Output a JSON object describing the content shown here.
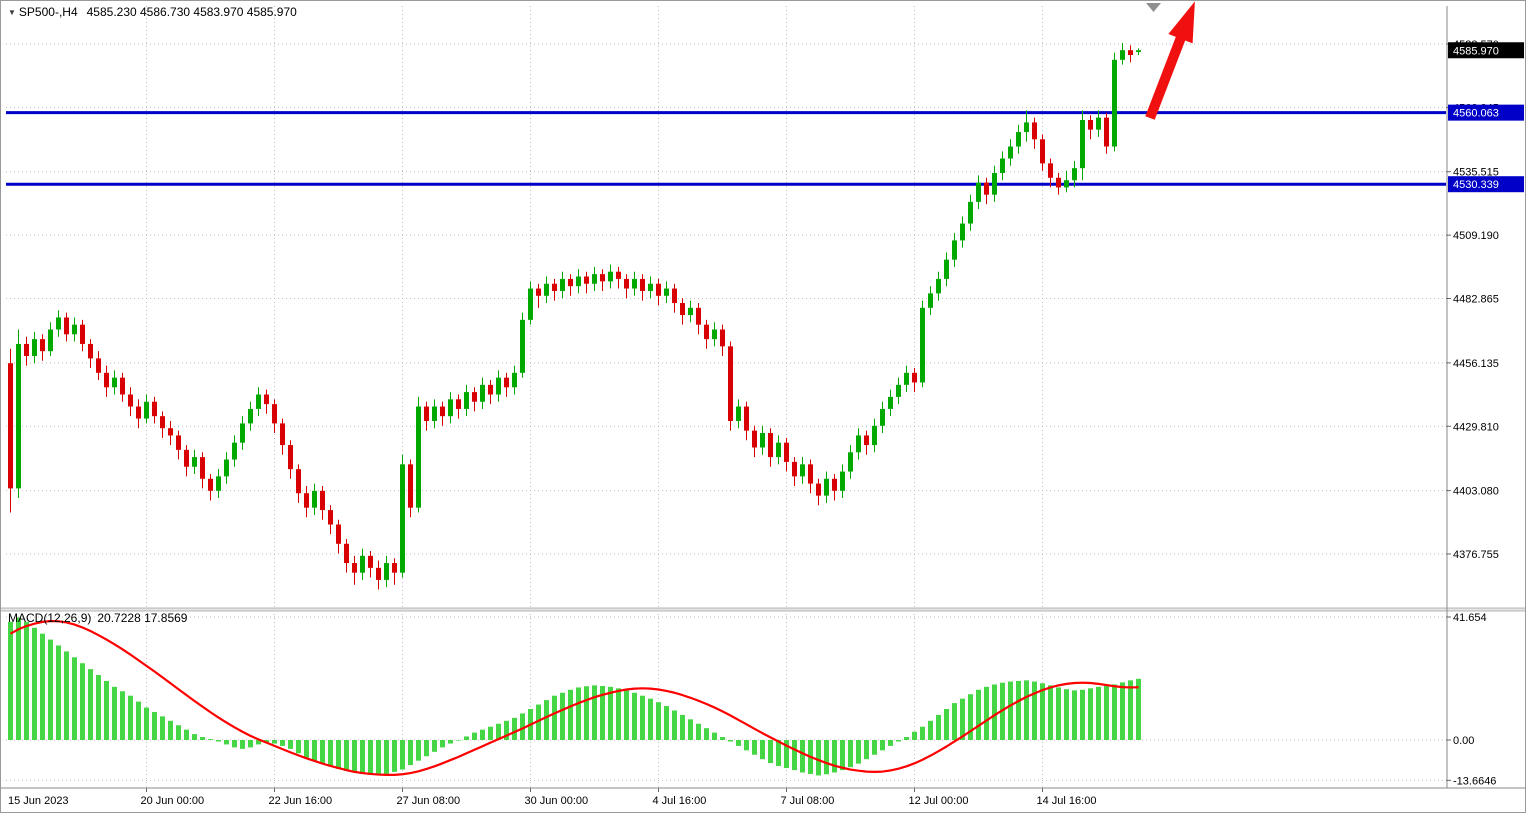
{
  "window": {
    "title_symbol": "SP500-,H4",
    "title_ohlc": "4585.230 4586.730 4583.970 4585.970"
  },
  "colors": {
    "background": "#FFFFFF",
    "grid": "#BDBDBD",
    "candle_up": "#00A800",
    "candle_down": "#D80000",
    "macd_hist": "#44D644",
    "macd_signal": "#FF0000",
    "hline": "#0000C8",
    "current_tag_bg": "#000000",
    "axis_text": "#000000",
    "arrow": "#F01010",
    "marker": "#8F8F8F",
    "border": "#9A9A9A"
  },
  "chart_data": {
    "type": "candlestick",
    "symbol": "SP500-",
    "timeframe": "H4",
    "current_bar": {
      "open": 4585.23,
      "high": 4586.73,
      "low": 4583.97,
      "close": 4585.97
    },
    "current_price": {
      "label": "4585.970",
      "price": 4585.97
    },
    "hlines": [
      {
        "label": "4560.063",
        "price": 4560.063
      },
      {
        "label": "4530.339",
        "price": 4530.339
      }
    ],
    "price_axis": [
      {
        "label": "4588.570",
        "value": 4588.57
      },
      {
        "label": "4562.245",
        "value": 4562.245
      },
      {
        "label": "4535.515",
        "value": 4535.515
      },
      {
        "label": "4509.190",
        "value": 4509.19
      },
      {
        "label": "4482.865",
        "value": 4482.865
      },
      {
        "label": "4456.135",
        "value": 4456.135
      },
      {
        "label": "4429.810",
        "value": 4429.81
      },
      {
        "label": "4403.080",
        "value": 4403.08
      },
      {
        "label": "4376.755",
        "value": 4376.755
      }
    ],
    "time_axis": [
      {
        "label": "15 Jun 2023",
        "index": 0,
        "gridline": false
      },
      {
        "label": "20 Jun 00:00",
        "index": 17,
        "gridline": true
      },
      {
        "label": "22 Jun 16:00",
        "index": 33,
        "gridline": true
      },
      {
        "label": "27 Jun 08:00",
        "index": 49,
        "gridline": true
      },
      {
        "label": "30 Jun 00:00",
        "index": 65,
        "gridline": true
      },
      {
        "label": "4 Jul 16:00",
        "index": 81,
        "gridline": true
      },
      {
        "label": "7 Jul 08:00",
        "index": 97,
        "gridline": true
      },
      {
        "label": "12 Jul 00:00",
        "index": 113,
        "gridline": true
      },
      {
        "label": "14 Jul 16:00",
        "index": 129,
        "gridline": true
      }
    ],
    "candles": [
      [
        4456,
        4462,
        4394,
        4404
      ],
      [
        4404,
        4470,
        4400,
        4464
      ],
      [
        4464,
        4467,
        4455,
        4459
      ],
      [
        4459,
        4469,
        4456,
        4466
      ],
      [
        4466,
        4468,
        4457,
        4461
      ],
      [
        4461,
        4473,
        4459,
        4470
      ],
      [
        4470,
        4478,
        4467,
        4475
      ],
      [
        4475,
        4477,
        4465,
        4468
      ],
      [
        4468,
        4475,
        4465,
        4472
      ],
      [
        4472,
        4474,
        4461,
        4464
      ],
      [
        4464,
        4466,
        4454,
        4458
      ],
      [
        4458,
        4461,
        4449,
        4452
      ],
      [
        4452,
        4455,
        4442,
        4446
      ],
      [
        4446,
        4453,
        4443,
        4450
      ],
      [
        4450,
        4452,
        4440,
        4443
      ],
      [
        4443,
        4446,
        4434,
        4438
      ],
      [
        4438,
        4441,
        4429,
        4433
      ],
      [
        4433,
        4443,
        4431,
        4440
      ],
      [
        4440,
        4442,
        4431,
        4434
      ],
      [
        4434,
        4436,
        4425,
        4429
      ],
      [
        4429,
        4432,
        4422,
        4426
      ],
      [
        4426,
        4428,
        4416,
        4420
      ],
      [
        4420,
        4422,
        4409,
        4413
      ],
      [
        4413,
        4420,
        4410,
        4417
      ],
      [
        4417,
        4419,
        4404,
        4408
      ],
      [
        4408,
        4410,
        4399,
        4403
      ],
      [
        4403,
        4412,
        4400,
        4409
      ],
      [
        4409,
        4419,
        4406,
        4416
      ],
      [
        4416,
        4426,
        4413,
        4423
      ],
      [
        4423,
        4434,
        4420,
        4431
      ],
      [
        4431,
        4440,
        4428,
        4437
      ],
      [
        4437,
        4446,
        4434,
        4443
      ],
      [
        4443,
        4445,
        4435,
        4439
      ],
      [
        4439,
        4441,
        4427,
        4431
      ],
      [
        4431,
        4433,
        4418,
        4422
      ],
      [
        4422,
        4424,
        4408,
        4412
      ],
      [
        4412,
        4414,
        4398,
        4402
      ],
      [
        4402,
        4405,
        4392,
        4396
      ],
      [
        4396,
        4406,
        4393,
        4403
      ],
      [
        4403,
        4405,
        4391,
        4395
      ],
      [
        4395,
        4397,
        4385,
        4389
      ],
      [
        4389,
        4391,
        4377,
        4381
      ],
      [
        4381,
        4383,
        4369,
        4373
      ],
      [
        4373,
        4376,
        4364,
        4369
      ],
      [
        4369,
        4379,
        4366,
        4376
      ],
      [
        4376,
        4378,
        4367,
        4371
      ],
      [
        4371,
        4374,
        4362,
        4366
      ],
      [
        4366,
        4376,
        4363,
        4373
      ],
      [
        4373,
        4375,
        4364,
        4369
      ],
      [
        4369,
        4418,
        4367,
        4414
      ],
      [
        4414,
        4416,
        4392,
        4396
      ],
      [
        4396,
        4442,
        4394,
        4438
      ],
      [
        4438,
        4440,
        4428,
        4432
      ],
      [
        4432,
        4441,
        4429,
        4438
      ],
      [
        4438,
        4440,
        4430,
        4434
      ],
      [
        4434,
        4444,
        4431,
        4441
      ],
      [
        4441,
        4443,
        4433,
        4437
      ],
      [
        4437,
        4447,
        4434,
        4444
      ],
      [
        4444,
        4446,
        4436,
        4440
      ],
      [
        4440,
        4450,
        4437,
        4447
      ],
      [
        4447,
        4449,
        4439,
        4443
      ],
      [
        4443,
        4453,
        4440,
        4450
      ],
      [
        4450,
        4452,
        4442,
        4446
      ],
      [
        4446,
        4455,
        4443,
        4452
      ],
      [
        4452,
        4477,
        4450,
        4474
      ],
      [
        4474,
        4490,
        4472,
        4487
      ],
      [
        4487,
        4489,
        4479,
        4484
      ],
      [
        4484,
        4492,
        4481,
        4489
      ],
      [
        4489,
        4491,
        4482,
        4486
      ],
      [
        4486,
        4494,
        4483,
        4491
      ],
      [
        4491,
        4493,
        4484,
        4488
      ],
      [
        4488,
        4495,
        4485,
        4492
      ],
      [
        4492,
        4494,
        4485,
        4489
      ],
      [
        4489,
        4496,
        4486,
        4493
      ],
      [
        4493,
        4495,
        4486,
        4490
      ],
      [
        4490,
        4497,
        4487,
        4494
      ],
      [
        4494,
        4496,
        4487,
        4491
      ],
      [
        4491,
        4493,
        4483,
        4487
      ],
      [
        4487,
        4494,
        4484,
        4491
      ],
      [
        4491,
        4493,
        4482,
        4486
      ],
      [
        4486,
        4492,
        4483,
        4489
      ],
      [
        4489,
        4491,
        4480,
        4484
      ],
      [
        4484,
        4490,
        4481,
        4487
      ],
      [
        4487,
        4489,
        4477,
        4481
      ],
      [
        4481,
        4483,
        4472,
        4476
      ],
      [
        4476,
        4482,
        4473,
        4479
      ],
      [
        4479,
        4481,
        4468,
        4472
      ],
      [
        4472,
        4474,
        4462,
        4466
      ],
      [
        4466,
        4473,
        4463,
        4470
      ],
      [
        4470,
        4472,
        4459,
        4463
      ],
      [
        4463,
        4465,
        4428,
        4432
      ],
      [
        4432,
        4441,
        4429,
        4438
      ],
      [
        4438,
        4440,
        4424,
        4428
      ],
      [
        4428,
        4430,
        4417,
        4421
      ],
      [
        4421,
        4430,
        4418,
        4427
      ],
      [
        4427,
        4429,
        4413,
        4417
      ],
      [
        4417,
        4426,
        4414,
        4423
      ],
      [
        4423,
        4425,
        4411,
        4415
      ],
      [
        4415,
        4417,
        4405,
        4409
      ],
      [
        4409,
        4417,
        4406,
        4414
      ],
      [
        4414,
        4416,
        4402,
        4406
      ],
      [
        4406,
        4408,
        4397,
        4401
      ],
      [
        4401,
        4411,
        4398,
        4408
      ],
      [
        4408,
        4410,
        4399,
        4403
      ],
      [
        4403,
        4414,
        4400,
        4411
      ],
      [
        4411,
        4422,
        4408,
        4419
      ],
      [
        4419,
        4429,
        4416,
        4426
      ],
      [
        4426,
        4428,
        4418,
        4422
      ],
      [
        4422,
        4433,
        4419,
        4430
      ],
      [
        4430,
        4440,
        4427,
        4437
      ],
      [
        4437,
        4445,
        4434,
        4442
      ],
      [
        4442,
        4450,
        4439,
        4447
      ],
      [
        4447,
        4455,
        4444,
        4452
      ],
      [
        4452,
        4454,
        4444,
        4448
      ],
      [
        4448,
        4482,
        4446,
        4479
      ],
      [
        4479,
        4488,
        4476,
        4485
      ],
      [
        4485,
        4494,
        4482,
        4491
      ],
      [
        4491,
        4502,
        4488,
        4499
      ],
      [
        4499,
        4510,
        4496,
        4507
      ],
      [
        4507,
        4517,
        4504,
        4514
      ],
      [
        4514,
        4526,
        4511,
        4523
      ],
      [
        4523,
        4534,
        4520,
        4531
      ],
      [
        4531,
        4533,
        4522,
        4526
      ],
      [
        4526,
        4538,
        4523,
        4535
      ],
      [
        4535,
        4544,
        4532,
        4541
      ],
      [
        4541,
        4549,
        4538,
        4546
      ],
      [
        4546,
        4555,
        4543,
        4552
      ],
      [
        4552,
        4561,
        4548,
        4556
      ],
      [
        4556,
        4558,
        4545,
        4549
      ],
      [
        4549,
        4551,
        4536,
        4539
      ],
      [
        4539,
        4541,
        4529,
        4533
      ],
      [
        4533,
        4535,
        4526,
        4529
      ],
      [
        4529,
        4536,
        4527,
        4532
      ],
      [
        4532,
        4540,
        4529,
        4537
      ],
      [
        4537,
        4561,
        4532,
        4557
      ],
      [
        4557,
        4559,
        4549,
        4553
      ],
      [
        4553,
        4561,
        4550,
        4558
      ],
      [
        4558,
        4560,
        4543,
        4546
      ],
      [
        4546,
        4585,
        4544,
        4582
      ],
      [
        4582,
        4589,
        4580,
        4586
      ],
      [
        4586,
        4588,
        4581,
        4584
      ],
      [
        4585.23,
        4586.73,
        4583.97,
        4585.97
      ]
    ],
    "macd": {
      "title": "MACD(12,26,9)",
      "values": "20.7228 17.8569",
      "axis": [
        {
          "label": "41.654",
          "value": 41.654
        },
        {
          "label": "0.00",
          "value": 0
        },
        {
          "label": "-13.6646",
          "value": -13.6646
        }
      ],
      "histogram": [
        40,
        41.5,
        40,
        38,
        36,
        34,
        32,
        30,
        28,
        26,
        24,
        22,
        20,
        18,
        16.5,
        15,
        13,
        11,
        9.5,
        8,
        6.5,
        5,
        3.5,
        2,
        1,
        0.3,
        -0.5,
        -1.5,
        -2.5,
        -3,
        -2.5,
        -1.5,
        -0.8,
        -1.2,
        -2,
        -3,
        -4.5,
        -6,
        -7,
        -8,
        -9,
        -9.8,
        -10.5,
        -11,
        -11.5,
        -11.8,
        -12,
        -11.5,
        -10.8,
        -10,
        -8.5,
        -7,
        -5.5,
        -4,
        -2.5,
        -1.2,
        0,
        1.2,
        2.5,
        3.5,
        4.5,
        5.5,
        6.5,
        7.5,
        9,
        10.5,
        12,
        13.5,
        15,
        16,
        17,
        17.8,
        18.2,
        18.5,
        18.3,
        18,
        17.5,
        16.8,
        16,
        15,
        14,
        12.8,
        11.5,
        10,
        8.5,
        7,
        5.5,
        4,
        2.5,
        1,
        -0.5,
        -2,
        -3.5,
        -5,
        -6.5,
        -7.8,
        -8.8,
        -9.5,
        -10.2,
        -11,
        -11.5,
        -12,
        -11.6,
        -11,
        -10.2,
        -9.2,
        -8,
        -6.5,
        -5,
        -3.5,
        -2,
        -0.5,
        1,
        2.8,
        4.5,
        6.5,
        8.5,
        10.5,
        12.5,
        14,
        15.5,
        17,
        18,
        18.8,
        19.4,
        19.8,
        20,
        20.2,
        19.8,
        19.2,
        18.5,
        17.8,
        17.2,
        16.8,
        17,
        17.5,
        18,
        18.3,
        18.8,
        19.5,
        20.2,
        20.7228
      ],
      "signal": [
        36,
        37.5,
        38.6,
        39.4,
        40,
        40.3,
        40.2,
        39.8,
        39.1,
        38.1,
        36.9,
        35.5,
        34,
        32.4,
        30.7,
        28.9,
        27,
        25.1,
        23.2,
        21.2,
        19.2,
        17.2,
        15.2,
        13.2,
        11.3,
        9.4,
        7.6,
        5.9,
        4.3,
        2.8,
        1.4,
        0.2,
        -0.9,
        -2,
        -3.1,
        -4.2,
        -5.2,
        -6.2,
        -7.1,
        -8,
        -8.8,
        -9.5,
        -10.2,
        -10.8,
        -11.2,
        -11.5,
        -11.7,
        -11.8,
        -11.8,
        -11.6,
        -11.2,
        -10.6,
        -9.8,
        -8.9,
        -7.9,
        -6.8,
        -5.7,
        -4.5,
        -3.3,
        -2.1,
        -0.9,
        0.3,
        1.5,
        2.7,
        3.9,
        5.2,
        6.5,
        7.8,
        9,
        10.2,
        11.4,
        12.5,
        13.5,
        14.5,
        15.3,
        16,
        16.6,
        17.1,
        17.4,
        17.5,
        17.4,
        17.1,
        16.6,
        16,
        15.2,
        14.3,
        13.3,
        12.2,
        11,
        9.7,
        8.3,
        6.8,
        5.3,
        3.8,
        2.3,
        0.9,
        -0.5,
        -1.9,
        -3.2,
        -4.5,
        -5.7,
        -6.8,
        -7.8,
        -8.7,
        -9.4,
        -10,
        -10.4,
        -10.7,
        -10.8,
        -10.7,
        -10.3,
        -9.7,
        -8.9,
        -7.9,
        -6.7,
        -5.3,
        -3.8,
        -2.2,
        -0.5,
        1.2,
        3,
        4.8,
        6.6,
        8.4,
        10.1,
        11.7,
        13.2,
        14.6,
        15.8,
        16.9,
        17.8,
        18.5,
        19,
        19.3,
        19.4,
        19.3,
        19,
        18.6,
        18.2,
        17.9,
        17.8,
        17.8569
      ]
    }
  }
}
